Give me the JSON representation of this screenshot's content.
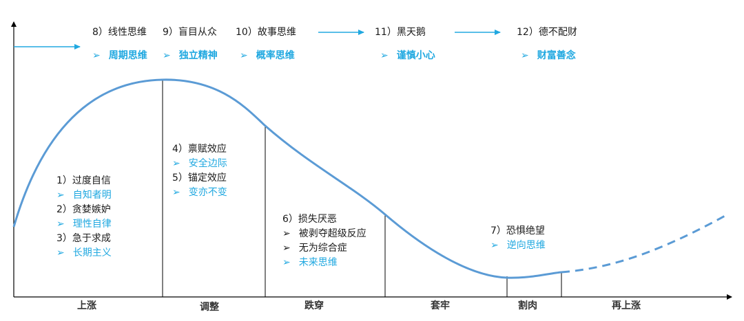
{
  "colors": {
    "accent": "#20a8e0",
    "curve": "#5b9bd5",
    "text": "#1a1a1a",
    "axis": "#000000"
  },
  "top_row": {
    "biases": [
      "8）线性思维",
      "9）盲目从众",
      "10）故事思维",
      "11）黑天鹅",
      "12）德不配财"
    ],
    "remedies": [
      "周期思维",
      "独立精神",
      "概率思维",
      "谨慎小心",
      "财富善念"
    ]
  },
  "stages": [
    {
      "name": "上涨",
      "items": [
        {
          "text": "1）过度自信",
          "kind": "bias"
        },
        {
          "text": "自知者明",
          "kind": "remedy"
        },
        {
          "text": "2）贪婪嫉妒",
          "kind": "bias"
        },
        {
          "text": "理性自律",
          "kind": "remedy"
        },
        {
          "text": "3）急于求成",
          "kind": "bias"
        },
        {
          "text": "长期主义",
          "kind": "remedy"
        }
      ]
    },
    {
      "name": "调整",
      "items": [
        {
          "text": "4）禀赋效应",
          "kind": "bias"
        },
        {
          "text": "安全边际",
          "kind": "remedy"
        },
        {
          "text": "5）锚定效应",
          "kind": "bias"
        },
        {
          "text": "变亦不变",
          "kind": "remedy"
        }
      ]
    },
    {
      "name": "跌穿",
      "items": [
        {
          "text": "6）损失厌恶",
          "kind": "bias"
        },
        {
          "text": "被剥夺超级反应",
          "kind": "sub"
        },
        {
          "text": "无为综合症",
          "kind": "sub"
        },
        {
          "text": "未来思维",
          "kind": "remedy"
        }
      ]
    },
    {
      "name": "套牢",
      "items": []
    },
    {
      "name": "割肉",
      "items": [
        {
          "text": "7）恐惧绝望",
          "kind": "bias"
        },
        {
          "text": "逆向思维",
          "kind": "remedy"
        }
      ]
    },
    {
      "name": "再上涨",
      "items": []
    }
  ]
}
